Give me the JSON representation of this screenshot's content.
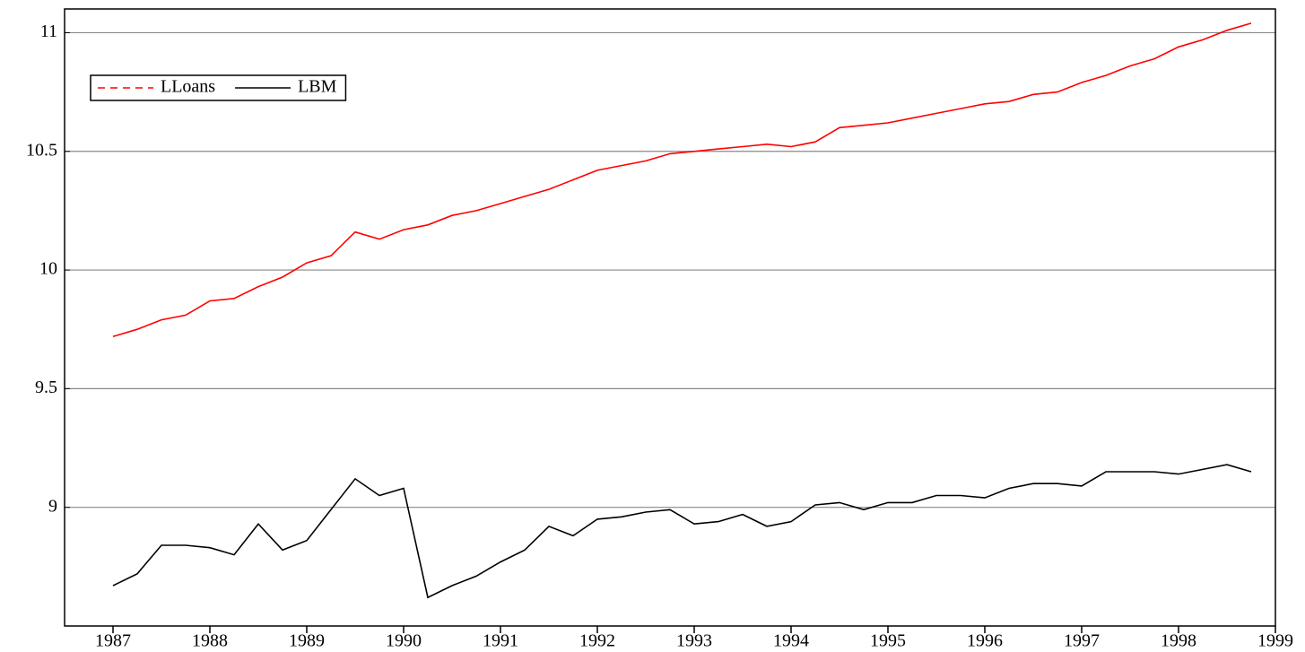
{
  "chart_data": {
    "type": "line",
    "x": [
      1987,
      1987.25,
      1987.5,
      1987.75,
      1988,
      1988.25,
      1988.5,
      1988.75,
      1989,
      1989.25,
      1989.5,
      1989.75,
      1990,
      1990.25,
      1990.5,
      1990.75,
      1991,
      1991.25,
      1991.5,
      1991.75,
      1992,
      1992.25,
      1992.5,
      1992.75,
      1993,
      1993.25,
      1993.5,
      1993.75,
      1994,
      1994.25,
      1994.5,
      1994.75,
      1995,
      1995.25,
      1995.5,
      1995.75,
      1996,
      1996.25,
      1996.5,
      1996.75,
      1997,
      1997.25,
      1997.5,
      1997.75,
      1998,
      1998.25,
      1998.5,
      1998.75
    ],
    "series": [
      {
        "name": "LLoans",
        "color": "#ff0000",
        "values": [
          9.72,
          9.75,
          9.79,
          9.81,
          9.87,
          9.88,
          9.93,
          9.97,
          10.03,
          10.06,
          10.16,
          10.13,
          10.17,
          10.19,
          10.23,
          10.25,
          10.28,
          10.31,
          10.34,
          10.38,
          10.42,
          10.44,
          10.46,
          10.49,
          10.5,
          10.51,
          10.52,
          10.53,
          10.52,
          10.54,
          10.6,
          10.61,
          10.62,
          10.64,
          10.66,
          10.68,
          10.7,
          10.71,
          10.74,
          10.75,
          10.79,
          10.82,
          10.86,
          10.89,
          10.94,
          10.97,
          11.01,
          11.04
        ]
      },
      {
        "name": "LBM",
        "color": "#000000",
        "values": [
          8.67,
          8.72,
          8.84,
          8.84,
          8.83,
          8.8,
          8.93,
          8.82,
          8.86,
          8.99,
          9.12,
          9.05,
          9.08,
          8.62,
          8.67,
          8.71,
          8.77,
          8.82,
          8.92,
          8.88,
          8.95,
          8.96,
          8.98,
          8.99,
          8.93,
          8.94,
          8.97,
          8.92,
          8.94,
          9.01,
          9.02,
          8.99,
          9.02,
          9.02,
          9.05,
          9.05,
          9.04,
          9.08,
          9.1,
          9.1,
          9.09,
          9.15,
          9.15,
          9.15,
          9.14,
          9.16,
          9.18,
          9.15
        ]
      }
    ],
    "xlim": [
      1986.5,
      1999
    ],
    "xticks": [
      1987,
      1988,
      1989,
      1990,
      1991,
      1992,
      1993,
      1994,
      1995,
      1996,
      1997,
      1998,
      1999
    ],
    "ylim": [
      8.5,
      11.1
    ],
    "yticks": [
      9,
      9.5,
      10,
      10.5,
      11
    ],
    "grid": true,
    "legend": "upper left"
  }
}
